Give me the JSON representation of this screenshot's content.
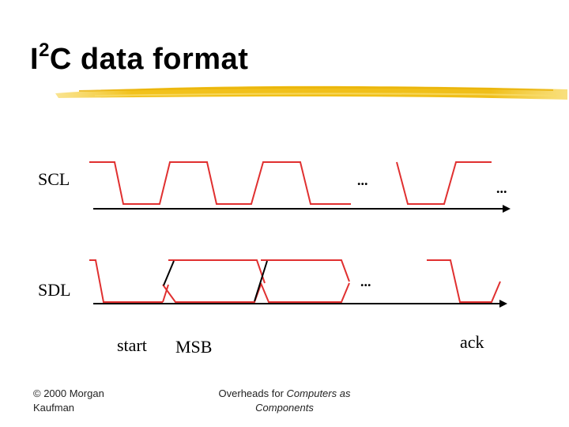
{
  "slide": {
    "title_main": "I",
    "title_sup": "2",
    "title_rest": "C data format"
  },
  "signals": {
    "scl_label": "SCL",
    "sdl_label": "SDL",
    "ellipsis": "..."
  },
  "annotations": {
    "start": "start",
    "msb": "MSB",
    "ack": "ack"
  },
  "footer": {
    "copyright_line1": "© 2000 Morgan",
    "copyright_line2": "Kaufman",
    "overheads_prefix": "Overheads for ",
    "overheads_italic": "Computers as",
    "overheads_line2": "Components"
  },
  "colors": {
    "highlight": "#f2c21b",
    "waveform_red": "#e03030",
    "waveform_black": "#000000"
  }
}
